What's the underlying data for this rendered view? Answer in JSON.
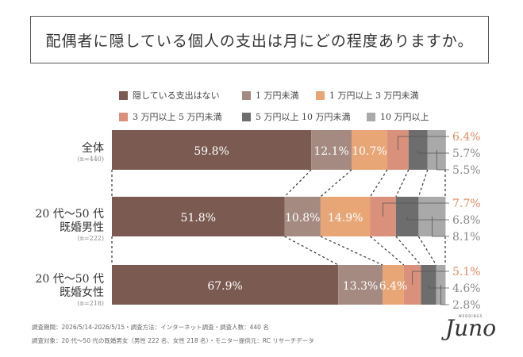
{
  "title": "配偶者に隠している個人の支出は月にどの程度ありますか。",
  "legend": [
    {
      "label": "隠している支出はない",
      "color": "#7b5b51"
    },
    {
      "label": "1 万円未満",
      "color": "#a48a80"
    },
    {
      "label": "1 万円以上 3 万円未満",
      "color": "#e8a677"
    },
    {
      "label": "3 万円以上 5 万円未満",
      "color": "#d9917c"
    },
    {
      "label": "5 万円以上 10 万円未満",
      "color": "#6d6d6d"
    },
    {
      "label": "10 万円以上",
      "color": "#a9a9a9"
    }
  ],
  "rows": [
    {
      "label": "全体",
      "n": "(n=440)"
    },
    {
      "label_line1": "20 代〜50 代",
      "label_line2": "既婚男性",
      "n": "(n=222)"
    },
    {
      "label_line1": "20 代〜50 代",
      "label_line2": "既婚女性",
      "n": "(n=218)"
    }
  ],
  "chart_data": {
    "type": "bar",
    "orientation": "horizontal-stacked-100",
    "categories": [
      "全体",
      "20 代〜50 代 既婚男性",
      "20 代〜50 代 既婚女性"
    ],
    "series": [
      {
        "name": "隠している支出はない",
        "values": [
          59.8,
          51.8,
          67.9
        ]
      },
      {
        "name": "1 万円未満",
        "values": [
          12.1,
          10.8,
          13.3
        ]
      },
      {
        "name": "1 万円以上 3 万円未満",
        "values": [
          10.7,
          14.9,
          6.4
        ]
      },
      {
        "name": "3 万円以上 5 万円未満",
        "values": [
          6.4,
          7.7,
          5.1
        ]
      },
      {
        "name": "5 万円以上 10 万円未満",
        "values": [
          5.7,
          6.8,
          4.6
        ]
      },
      {
        "name": "10 万円以上",
        "values": [
          5.5,
          8.1,
          2.8
        ]
      }
    ],
    "labels": [
      [
        "59.8%",
        "12.1%",
        "10.7%",
        "6.4%",
        "5.7%",
        "5.5%"
      ],
      [
        "51.8%",
        "10.8%",
        "14.9%",
        "7.7%",
        "6.8%",
        "8.1%"
      ],
      [
        "67.9%",
        "13.3%",
        "6.4%",
        "5.1%",
        "4.6%",
        "2.8%"
      ]
    ],
    "outside_label_colors": [
      "#e08a5e",
      "#888888",
      "#888888"
    ],
    "legend_position": "top"
  },
  "footer": {
    "line1": "調査期間：2026/5/14-2026/5/15・調査方法：インターネット調査・調査人数：440 名",
    "line2": "調査対象：20 代〜50 代の既婚男女（男性 222 名、女性 218 名）・モニター提供元：RC リサーチデータ"
  },
  "logo": {
    "small": "WEDDINGS",
    "big": "Juno"
  }
}
